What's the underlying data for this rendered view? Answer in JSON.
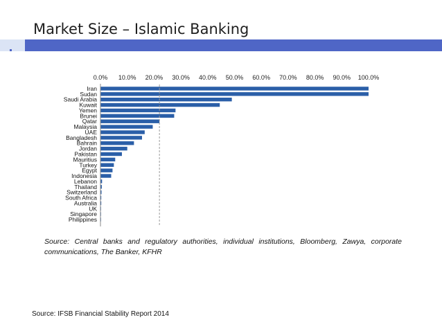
{
  "slide": {
    "title": "Market Size – Islamic Banking",
    "footer_source": "Source: IFSB Financial Stability Report 2014",
    "accent_color": "#4f66c6"
  },
  "chart_data": {
    "type": "bar",
    "orientation": "horizontal",
    "categories": [
      "Iran",
      "Sudan",
      "Saudi Arabia",
      "Kuwait",
      "Yemen",
      "Brunei",
      "Qatar",
      "Malaysia",
      "UAE",
      "Bangladesh",
      "Bahrain",
      "Jordan",
      "Pakistan",
      "Mauritius",
      "Turkey",
      "Egypt",
      "Indonesia",
      "Lebanon",
      "Thailand",
      "Switzerland",
      "South Africa",
      "Australia",
      "UK",
      "Singapore",
      "Philippines"
    ],
    "values": [
      100.0,
      100.0,
      49.0,
      44.5,
      28.0,
      27.5,
      22.0,
      19.5,
      16.5,
      15.5,
      12.5,
      10.0,
      8.0,
      5.5,
      5.0,
      4.5,
      4.0,
      0.6,
      0.5,
      0.4,
      0.3,
      0.3,
      0.2,
      0.1,
      0.1
    ],
    "x_ticks": [
      "0.0%",
      "10.0%",
      "20.0%",
      "30.0%",
      "40.0%",
      "50.0%",
      "60.0%",
      "70.0%",
      "80.0%",
      "90.0%",
      "100.0%"
    ],
    "xlim": [
      0,
      100
    ],
    "reference_line": 22,
    "bar_color": "#2b5fa8",
    "grid": false,
    "legend": false,
    "source_note": "Source: Central banks and regulatory authorities, individual institutions, Bloomberg, Zawya, corporate communications, The Banker, KFHR"
  }
}
